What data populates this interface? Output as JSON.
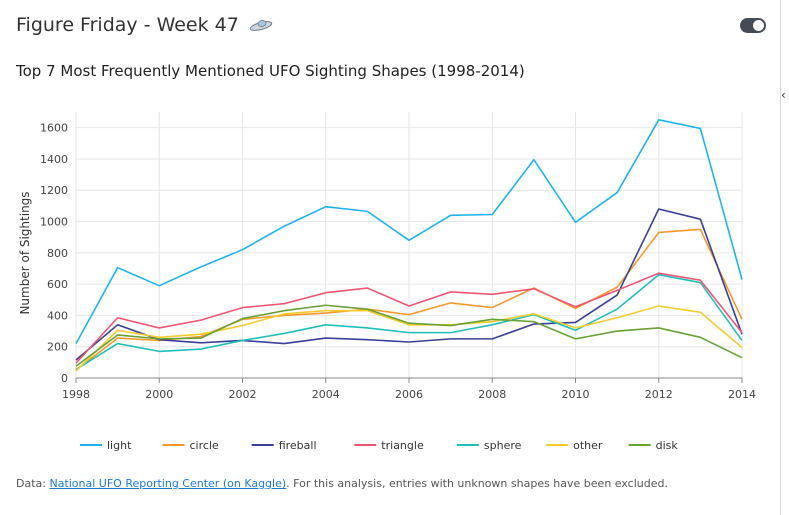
{
  "header": {
    "title": "Figure Friday - Week 47",
    "icon": "ufo-icon"
  },
  "toggle": {
    "state": "on"
  },
  "chart_data": {
    "type": "line",
    "title": "Top 7 Most Frequently Mentioned UFO Sighting Shapes (1998-2014)",
    "xlabel": "",
    "ylabel": "Number of Sightings",
    "x": [
      1998,
      1999,
      2000,
      2001,
      2002,
      2003,
      2004,
      2005,
      2006,
      2007,
      2008,
      2009,
      2010,
      2011,
      2012,
      2013,
      2014
    ],
    "x_ticks": [
      "1998",
      "2000",
      "2002",
      "2004",
      "2006",
      "2008",
      "2010",
      "2012",
      "2014"
    ],
    "y_ticks": [
      "0",
      "200",
      "400",
      "600",
      "800",
      "1000",
      "1200",
      "1400",
      "1600"
    ],
    "xlim": [
      1998,
      2014
    ],
    "ylim": [
      0,
      1700
    ],
    "grid": true,
    "legend_position": "bottom",
    "series": [
      {
        "name": "light",
        "color": "#1eb4ea",
        "values": [
          220,
          705,
          590,
          710,
          820,
          970,
          1095,
          1065,
          880,
          1040,
          1045,
          1395,
          995,
          1185,
          1650,
          1595,
          630
        ]
      },
      {
        "name": "circle",
        "color": "#f39a2e",
        "values": [
          50,
          255,
          240,
          265,
          375,
          400,
          415,
          440,
          405,
          480,
          450,
          575,
          445,
          580,
          930,
          950,
          375
        ]
      },
      {
        "name": "fireball",
        "color": "#3b3f96",
        "values": [
          115,
          340,
          245,
          225,
          240,
          220,
          255,
          245,
          230,
          250,
          250,
          345,
          355,
          530,
          1080,
          1015,
          280
        ]
      },
      {
        "name": "triangle",
        "color": "#ef5676",
        "values": [
          95,
          385,
          320,
          370,
          450,
          475,
          545,
          575,
          460,
          550,
          535,
          570,
          455,
          560,
          670,
          625,
          290
        ]
      },
      {
        "name": "sphere",
        "color": "#1fc0b8",
        "values": [
          55,
          220,
          170,
          185,
          240,
          285,
          340,
          320,
          290,
          290,
          340,
          405,
          305,
          440,
          660,
          610,
          240
        ]
      },
      {
        "name": "other",
        "color": "#f4cc30",
        "values": [
          45,
          305,
          260,
          280,
          335,
          410,
          430,
          430,
          340,
          340,
          360,
          410,
          320,
          385,
          460,
          420,
          195
        ]
      },
      {
        "name": "disk",
        "color": "#6aa137",
        "values": [
          75,
          275,
          250,
          255,
          380,
          430,
          465,
          440,
          350,
          335,
          375,
          360,
          250,
          300,
          320,
          260,
          130
        ]
      }
    ]
  },
  "footer": {
    "prefix": "Data: ",
    "link_text": "National UFO Reporting Center (on Kaggle)",
    "suffix": ". For this analysis, entries with unknown shapes have been excluded."
  }
}
